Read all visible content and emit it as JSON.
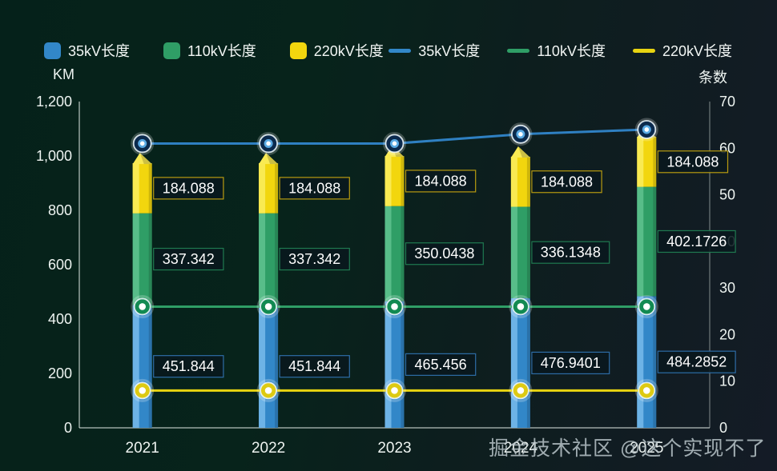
{
  "watermark": "掘金技术社区 @这个实现不了",
  "left_axis": {
    "name": "KM",
    "min": 0,
    "max": 1200,
    "step": 200
  },
  "right_axis": {
    "name": "条数",
    "min": 0,
    "max": 70,
    "step": 10
  },
  "legend_bars": [
    {
      "label": "35kV长度",
      "color": "#3287c8"
    },
    {
      "label": "110kV长度",
      "color": "#2f9e66"
    },
    {
      "label": "220kV长度",
      "color": "#f2d60e"
    }
  ],
  "legend_lines": [
    {
      "label": "35kV长度",
      "color": "#3287c8"
    },
    {
      "label": "110kV长度",
      "color": "#2f9e66"
    },
    {
      "label": "220kV长度",
      "color": "#e8d411"
    }
  ],
  "chart_data": {
    "type": "bar+line",
    "title": "",
    "categories": [
      "2021",
      "2022",
      "2023",
      "2024",
      "2025"
    ],
    "bar_axis_label": "KM",
    "line_axis_label": "条数",
    "bar_series": [
      {
        "name": "35kV长度",
        "color": "#3287c8",
        "light": "#6db3e6",
        "label_border": "#2d6ca6",
        "values": [
          451.844,
          451.844,
          465.456,
          476.9401,
          484.2852
        ]
      },
      {
        "name": "110kV长度",
        "color": "#2f9e66",
        "light": "#58bd89",
        "label_border": "#1f7a50",
        "values": [
          337.342,
          337.342,
          350.0438,
          336.1348,
          402.1726
        ]
      },
      {
        "name": "220kV长度",
        "color": "#f2d60e",
        "light": "#f9ea52",
        "label_border": "#b89b10",
        "values": [
          184.088,
          184.088,
          184.088,
          184.088,
          184.088
        ]
      }
    ],
    "line_series": [
      {
        "name": "35kV长度",
        "color": "#2f80c2",
        "marker_fill": "#0b2a4d",
        "values": [
          61,
          61,
          61,
          63,
          64
        ]
      },
      {
        "name": "110kV长度",
        "color": "#2f9e66",
        "marker_fill": "#128a52",
        "values": [
          26,
          26,
          26,
          26,
          26
        ]
      },
      {
        "name": "220kV长度",
        "color": "#e8d411",
        "marker_fill": "#ddca12",
        "values": [
          8,
          8,
          8,
          8,
          8
        ]
      }
    ],
    "ylim_left": [
      0,
      1200
    ],
    "ylim_right": [
      0,
      70
    ],
    "grid": false,
    "legend_position": "top"
  }
}
